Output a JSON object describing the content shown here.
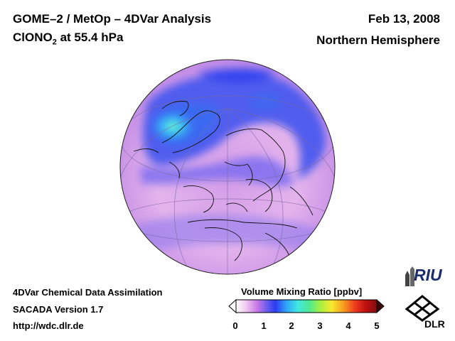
{
  "header": {
    "title_line1": "GOME–2 / MetOp – 4DVar Analysis",
    "title_species": "ClONO",
    "title_species_sub": "2",
    "title_level": " at 55.4 hPa",
    "date": "Feb 13, 2008",
    "region": "Northern Hemisphere"
  },
  "footer": {
    "line1": "4DVar Chemical Data Assimilation",
    "line2": "SACADA Version 1.7",
    "line3": "http://wdc.dlr.de"
  },
  "colorbar": {
    "label": "Volume Mixing Ratio [ppbv]",
    "ticks": [
      "0",
      "1",
      "2",
      "3",
      "4",
      "5"
    ],
    "colors": [
      "#ffffff",
      "#f0c8f0",
      "#c878e6",
      "#6a5cf0",
      "#2a3cf0",
      "#30a8f8",
      "#40e8e0",
      "#50e890",
      "#a8f040",
      "#f8e830",
      "#f8a020",
      "#f04020",
      "#c01010",
      "#801010"
    ]
  },
  "logos": {
    "riu_text": "RIU",
    "dlr_text": "DLR"
  }
}
